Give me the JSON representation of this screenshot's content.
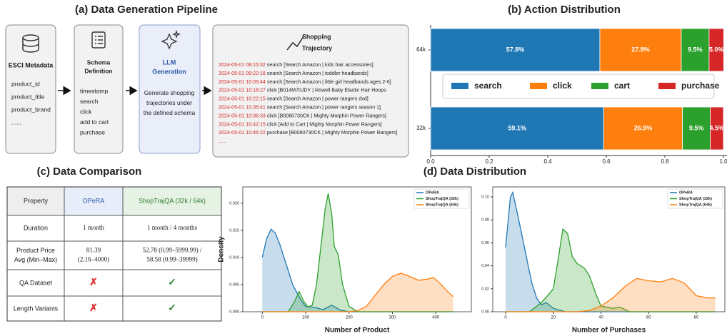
{
  "pipeline": {
    "title": "(a) Data Generation Pipeline",
    "metadata": {
      "title": "ESCI Metadata",
      "fields": [
        "product_id",
        "product_title",
        "product_brand",
        "......"
      ]
    },
    "schema": {
      "title": [
        "Schema",
        "Definition"
      ],
      "fields": [
        "timestamp",
        "search",
        "click",
        "add to cart",
        "purchase"
      ]
    },
    "llm": {
      "title": [
        "LLM",
        "Generation"
      ],
      "description": [
        "Generate shopping",
        "trajectories under",
        "the defined schema"
      ]
    },
    "trajectory": {
      "title": [
        "Shopping",
        "Trajectory"
      ],
      "log": [
        {
          "time": "2024-05-01 08:15:32",
          "text": "search [Search Amazon | kids hair accessories]"
        },
        {
          "time": "2024-05-01 09:22:18",
          "text": "search [Search Amazon | toddler headbands]"
        },
        {
          "time": "2024-05-01 10:05:44",
          "text": "search [Search Amazon | little girl headbands ages 2-6]"
        },
        {
          "time": "2024-05-01 10:18:27",
          "text": "click [B014M70JDY | Rowell Baby Elastic Hair Hoops"
        },
        {
          "time": "2024-05-01 10:22:15",
          "text": "search [Search Amazon | power rangers dvd]"
        },
        {
          "time": "2024-05-01 10:35:41",
          "text": "search [Search Amazon | power rangers season 1]"
        },
        {
          "time": "2024-05-01 10:36:33",
          "text": "click [B0080730CK | Mighty Morphin Power Rangers]"
        },
        {
          "time": "2024-05-01 10:42:15",
          "text": "click [Add to Cart | Mighty Morphin Power Rangers]"
        },
        {
          "time": "2024-05-01 10:45:22",
          "text": "purchase [B0080730CK | Mighty Morphin Power Rangers]"
        }
      ],
      "ellipsis": "......"
    }
  },
  "comparison": {
    "title": "(c) Data Comparison",
    "header": [
      "Property",
      "OPeRA",
      "ShopTrajQA (32k / 64k)"
    ],
    "rows": [
      [
        "Duration",
        "1 month",
        "1 month / 4 months"
      ],
      [
        [
          "Product Price",
          "Avg (Min–Max)"
        ],
        [
          "81.39",
          "(2.16–4000)"
        ],
        [
          "52.78 (0.99–5999.99) /",
          "58.58 (0.99–39999)"
        ]
      ],
      [
        "QA Dataset",
        {
          "text": "✗",
          "color": "#e0302f"
        },
        {
          "text": "✓",
          "color": "#2e8b3e"
        }
      ],
      [
        "Length Variants",
        {
          "text": "✗",
          "color": "#e0302f"
        },
        {
          "text": "✓",
          "color": "#2e8b3e"
        }
      ]
    ]
  },
  "distribution_title": "(d) Data Distribution",
  "chart_data": [
    {
      "type": "bar",
      "orientation": "horizontal",
      "stacked": true,
      "title": "(b) Action Distribution",
      "categories": [
        "64k",
        "32k"
      ],
      "series": [
        {
          "name": "search",
          "color": "#1f77b4",
          "values": [
            0.578,
            0.591
          ],
          "value_labels": [
            "57.8%",
            "59.1%"
          ]
        },
        {
          "name": "click",
          "color": "#ff7f0e",
          "values": [
            0.278,
            0.269
          ],
          "value_labels": [
            "27.8%",
            "26.9%"
          ]
        },
        {
          "name": "cart",
          "color": "#2ca02c",
          "values": [
            0.095,
            0.095
          ],
          "value_labels": [
            "9.5%",
            "9.5%"
          ]
        },
        {
          "name": "purchase",
          "color": "#d62728",
          "values": [
            0.05,
            0.045
          ],
          "value_labels": [
            "5.0%",
            "4.5%"
          ]
        }
      ],
      "xlim": [
        0,
        1
      ],
      "xticks": [
        {
          "value": 0,
          "label": "0.0"
        },
        0.2,
        0.4,
        0.6,
        0.8,
        {
          "value": 1,
          "label": "1.0"
        }
      ],
      "legend": "center"
    },
    {
      "type": "area",
      "xlabel": "Number of Product",
      "ylabel": "Density",
      "xlim": [
        -45,
        482
      ],
      "ylim": [
        0,
        0.023
      ],
      "xticks": [
        0,
        100,
        200,
        300,
        400
      ],
      "yticks": [
        {
          "value": 0,
          "label": "0.000"
        },
        {
          "value": 0.005,
          "label": "0.005"
        },
        {
          "value": 0.01,
          "label": "0.010"
        },
        {
          "value": 0.015,
          "label": "0.015"
        },
        {
          "value": 0.02,
          "label": "0.020"
        }
      ],
      "legend": "upper right",
      "series": [
        {
          "name": "OPeRA",
          "color": "#1f77b4",
          "x": [
            0,
            10,
            20,
            30,
            40,
            50,
            60,
            70,
            80,
            90,
            100,
            120,
            140,
            160,
            180,
            200,
            440
          ],
          "values": [
            0.01,
            0.0135,
            0.0152,
            0.0145,
            0.0125,
            0.01,
            0.0075,
            0.005,
            0.0035,
            0.002,
            0.001,
            0.0008,
            0.0004,
            0.0012,
            0.0003,
            0,
            0
          ]
        },
        {
          "name": "ShopTrajQA (32k)",
          "color": "#2ca02c",
          "x": [
            0,
            60,
            75,
            85,
            95,
            105,
            115,
            125,
            135,
            145,
            152,
            160,
            166,
            175,
            185,
            200,
            220,
            440
          ],
          "values": [
            0,
            0,
            0.002,
            0.0037,
            0.002,
            0.0009,
            0.0012,
            0.005,
            0.012,
            0.019,
            0.0218,
            0.018,
            0.012,
            0.0105,
            0.005,
            0.001,
            0,
            0
          ]
        },
        {
          "name": "ShopTrajQA (64k)",
          "color": "#ff7f0e",
          "x": [
            0,
            200,
            220,
            240,
            260,
            280,
            300,
            320,
            340,
            360,
            380,
            395,
            410,
            430,
            440
          ],
          "values": [
            0,
            0,
            0.0002,
            0.001,
            0.003,
            0.005,
            0.0065,
            0.0071,
            0.0065,
            0.0058,
            0.006,
            0.0063,
            0.0052,
            0.0035,
            0.0028
          ]
        }
      ]
    },
    {
      "type": "area",
      "xlabel": "Number of Purchases",
      "xlim": [
        -5.4,
        92
      ],
      "ylim": [
        0,
        0.1087
      ],
      "xticks": [
        0,
        20,
        40,
        60,
        80
      ],
      "yticks": [
        {
          "value": 0,
          "label": "0.00"
        },
        {
          "value": 0.02,
          "label": "0.02"
        },
        {
          "value": 0.04,
          "label": "0.04"
        },
        {
          "value": 0.06,
          "label": "0.06"
        },
        {
          "value": 0.08,
          "label": "0.08"
        },
        {
          "value": 0.1,
          "label": "0.10"
        }
      ],
      "legend": "upper right",
      "series": [
        {
          "name": "OPeRA",
          "color": "#1f77b4",
          "x": [
            0,
            2,
            3,
            5,
            7,
            9,
            11,
            13,
            15,
            17,
            20,
            25,
            88
          ],
          "values": [
            0.056,
            0.1,
            0.104,
            0.085,
            0.065,
            0.045,
            0.025,
            0.012,
            0.006,
            0.008,
            0.003,
            0,
            0
          ]
        },
        {
          "name": "ShopTrajQA (32k)",
          "color": "#2ca02c",
          "x": [
            0,
            10,
            15,
            18,
            20,
            22,
            24,
            26,
            28,
            30,
            33,
            35,
            38,
            40,
            45,
            48,
            52,
            88
          ],
          "values": [
            0,
            0,
            0.008,
            0.015,
            0.02,
            0.045,
            0.072,
            0.068,
            0.048,
            0.042,
            0.038,
            0.032,
            0.015,
            0.005,
            0.003,
            0.004,
            0,
            0
          ]
        },
        {
          "name": "ShopTrajQA (64k)",
          "color": "#ff7f0e",
          "x": [
            0,
            30,
            35,
            40,
            45,
            50,
            55,
            60,
            65,
            70,
            75,
            80,
            85,
            88
          ],
          "values": [
            0,
            0,
            0.001,
            0.005,
            0.012,
            0.022,
            0.029,
            0.027,
            0.026,
            0.029,
            0.025,
            0.014,
            0.012,
            0.012
          ]
        }
      ]
    }
  ]
}
